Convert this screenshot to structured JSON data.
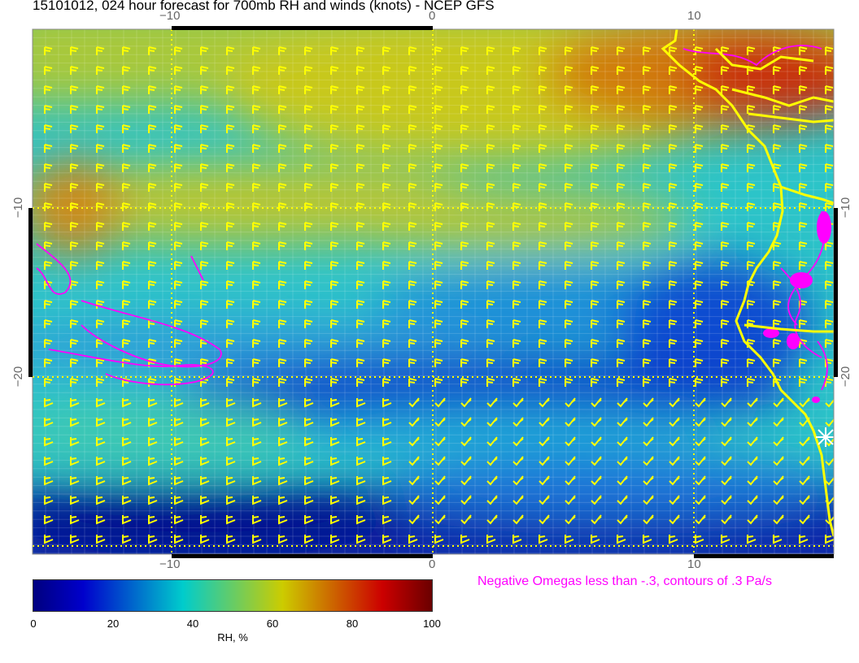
{
  "title": "15101012, 024 hour forecast for 700mb RH and winds (knots) - NCEP GFS",
  "x_axis_ticks": [
    "−10",
    "0",
    "10"
  ],
  "y_axis_ticks": [
    "−10",
    "−20"
  ],
  "colorbar": {
    "label": "RH, %",
    "ticks": [
      "0",
      "20",
      "40",
      "60",
      "80",
      "100"
    ],
    "range": [
      0,
      100
    ],
    "colors": [
      "#00007f",
      "#0000cc",
      "#0066cc",
      "#00cccc",
      "#66cc66",
      "#cccc00",
      "#cc6600",
      "#cc0000",
      "#6b0000"
    ]
  },
  "annotation": "Negative Omegas less than -.3, contours of .3 Pa/s",
  "colors": {
    "wind_barbs": "#ffff00",
    "coastline": "#ffff00",
    "omega_contours": "#ff00ff",
    "gridlines": "#ffffff"
  },
  "map": {
    "lon_range": [
      -15.3,
      15.4
    ],
    "lat_range": [
      -0.4,
      -31.1
    ],
    "gridlines_deg": 10
  }
}
